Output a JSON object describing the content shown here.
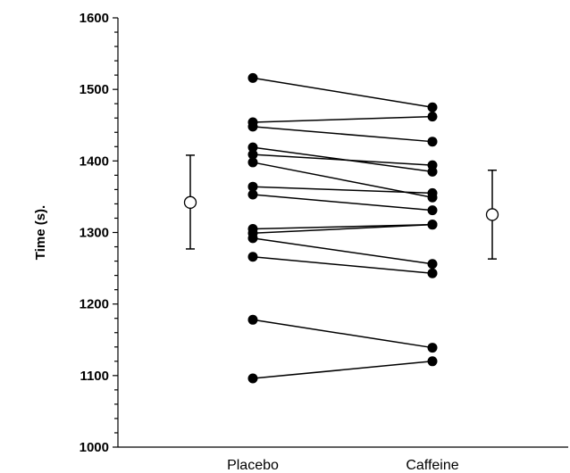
{
  "chart_data": {
    "type": "scatter",
    "title": "",
    "xlabel": "",
    "ylabel": "Time (s).",
    "categories": [
      "Placebo",
      "Caffeine"
    ],
    "ylim": [
      1000,
      1600
    ],
    "yticks": [
      1000,
      1100,
      1200,
      1300,
      1400,
      1500,
      1600
    ],
    "grid": false,
    "paired_values": [
      [
        1516,
        1475
      ],
      [
        1454,
        1462
      ],
      [
        1448,
        1427
      ],
      [
        1419,
        1385
      ],
      [
        1409,
        1394
      ],
      [
        1398,
        1349
      ],
      [
        1364,
        1355
      ],
      [
        1353,
        1331
      ],
      [
        1305,
        1311
      ],
      [
        1299,
        1311
      ],
      [
        1292,
        1256
      ],
      [
        1266,
        1243
      ],
      [
        1178,
        1139
      ],
      [
        1096,
        1120
      ]
    ],
    "means": [
      {
        "name": "Placebo",
        "mean": 1342,
        "upper": 1408,
        "lower": 1277
      },
      {
        "name": "Caffeine",
        "mean": 1325,
        "upper": 1387,
        "lower": 1263
      }
    ]
  }
}
